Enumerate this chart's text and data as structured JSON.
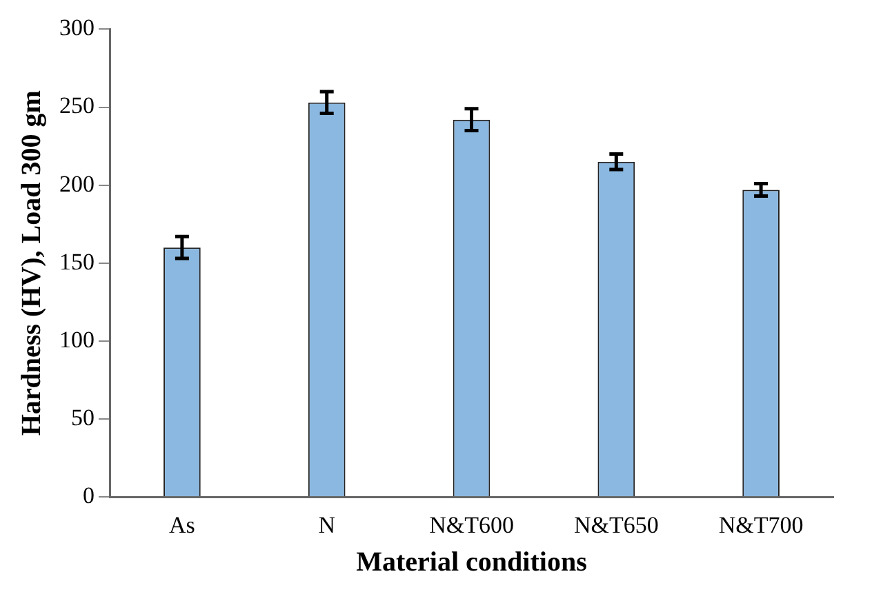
{
  "chart_data": {
    "type": "bar",
    "xlabel": "Material conditions",
    "ylabel": "Hardness (HV), Load 300 gm",
    "categories": [
      "As",
      "N",
      "N&T600",
      "N&T650",
      "N&T700"
    ],
    "values": [
      160,
      253,
      242,
      215,
      197
    ],
    "errors": [
      7,
      7,
      7,
      5,
      4
    ],
    "color": "#8bb8e0",
    "ylim": [
      0,
      300
    ],
    "yticks": [
      0,
      50,
      100,
      150,
      200,
      250,
      300
    ],
    "grid": false,
    "legend": false
  }
}
